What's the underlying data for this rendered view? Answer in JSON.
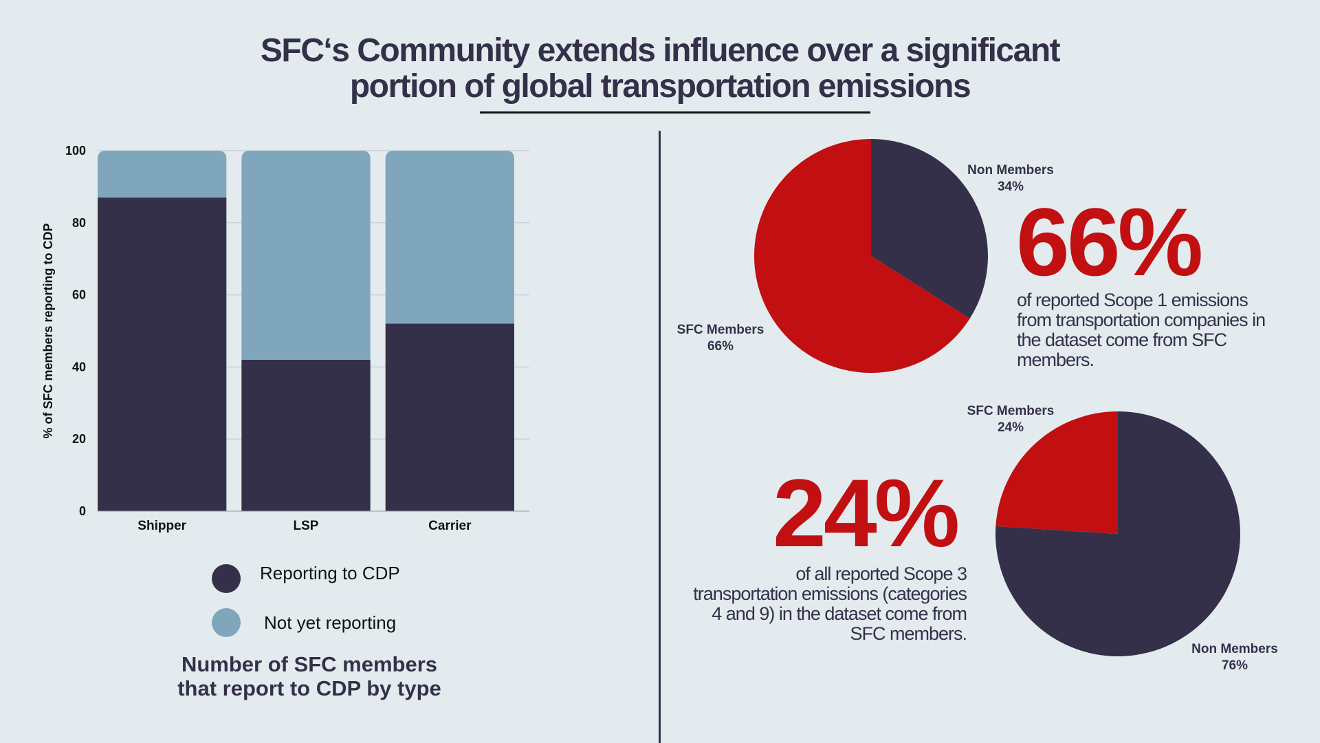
{
  "title": {
    "line1": "SFC‘s Community extends influence over a significant",
    "line2": "portion of global transportation emissions"
  },
  "colors": {
    "background": "#e4ebef",
    "dark": "#35304a",
    "light_blue": "#80a6bb",
    "red": "#c10f12"
  },
  "chart_data": [
    {
      "type": "bar",
      "stacked": true,
      "categories": [
        "Shipper",
        "LSP",
        "Carrier"
      ],
      "series": [
        {
          "name": "Reporting to CDP",
          "values": [
            87,
            42,
            52
          ],
          "color": "#35304a"
        },
        {
          "name": "Not yet reporting",
          "values": [
            13,
            58,
            48
          ],
          "color": "#80a6bb"
        }
      ],
      "ylabel": "% of SFC members reporting to CDP",
      "ylim": [
        0,
        100
      ],
      "yticks": [
        "0",
        "20",
        "40",
        "60",
        "80",
        "100"
      ],
      "grid": true,
      "legend": "bottom",
      "caption": {
        "line1": "Number of SFC members",
        "line2": "that report to CDP by type"
      }
    },
    {
      "type": "pie",
      "labels": [
        "Non Members",
        "SFC Members"
      ],
      "values": [
        34,
        66
      ],
      "value_labels": [
        "34%",
        "66%"
      ],
      "colors": [
        "#35304a",
        "#c10f12"
      ]
    },
    {
      "type": "pie",
      "labels": [
        "Non Members",
        "SFC Members"
      ],
      "values": [
        76,
        24
      ],
      "value_labels": [
        "76%",
        "24%"
      ],
      "colors": [
        "#35304a",
        "#c10f12"
      ]
    }
  ],
  "stats": {
    "scope1": {
      "value": "66%",
      "lines": [
        "of reported Scope 1 emissions",
        "from transportation companies in",
        "the dataset come from SFC",
        "members."
      ]
    },
    "scope3": {
      "value": "24%",
      "lines": [
        "of all reported Scope 3",
        "transportation emissions (categories",
        "4 and 9) in the dataset come from",
        "SFC members."
      ]
    }
  }
}
